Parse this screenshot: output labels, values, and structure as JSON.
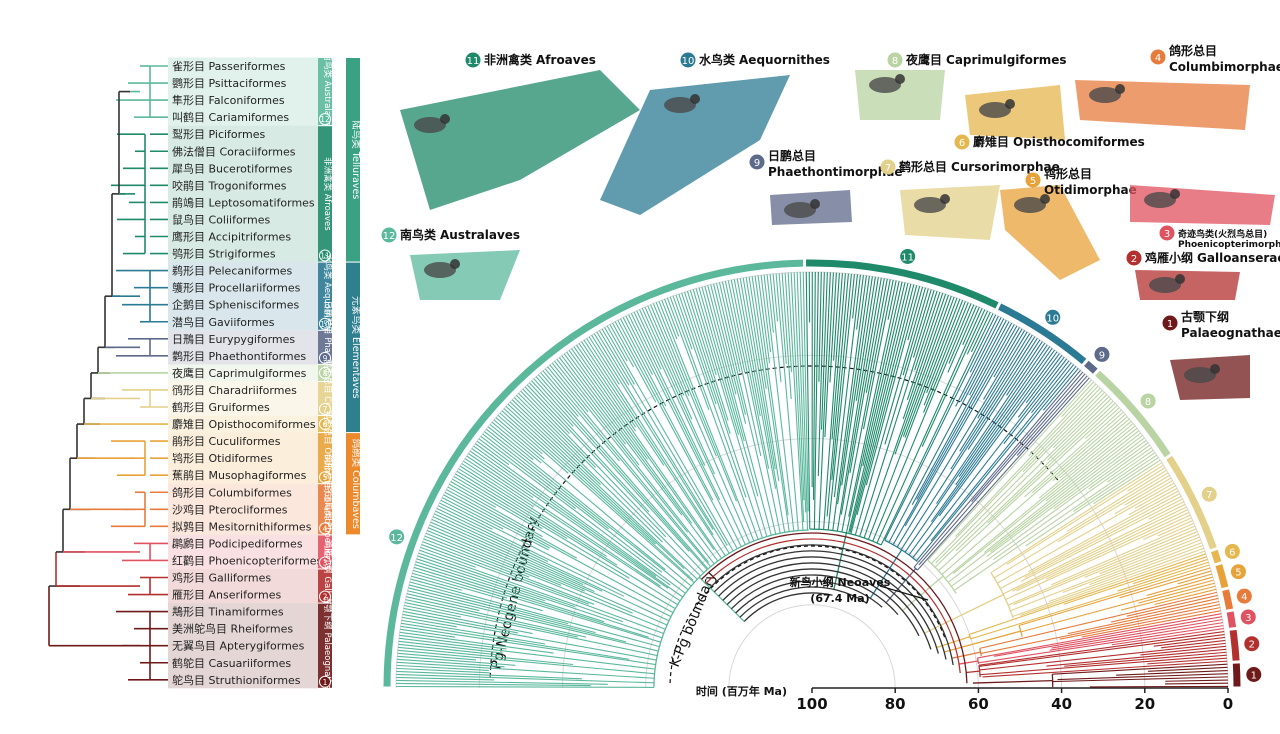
{
  "orders": [
    "雀形目 Passeriformes",
    "鹦形目 Psittaciformes",
    "隼形目 Falconiformes",
    "叫鹤目 Cariamiformes",
    "䴕形目 Piciformes",
    "佛法僧目 Coraciiformes",
    "犀鸟目 Bucerotiformes",
    "咬鹃目 Trogoniformes",
    "鹃鴗目 Leptosomatiformes",
    "鼠鸟目 Coliiformes",
    "鹰形目 Accipitriformes",
    "鸮形目 Strigiformes",
    "鹈形目 Pelecaniformes",
    "鹱形目 Procellariiformes",
    "企鹅目 Sphenisciformes",
    "潜鸟目 Gaviiformes",
    "日鳽目 Eurypygiformes",
    "鹲形目 Phaethontiformes",
    "夜鹰目 Caprimulgiformes",
    "鸻形目 Charadriiformes",
    "鹤形目 Gruiformes",
    "麝雉目 Opisthocomiformes",
    "鹃形目 Cuculiformes",
    "鸨形目 Otidiformes",
    "蕉鹃目 Musophagiformes",
    "鸽形目 Columbiformes",
    "沙鸡目 Pterocliformes",
    "拟鹑目 Mesitornithiformes",
    "䴙䴘目 Podicipediformes",
    "红鹳目 Phoenicopteriformes",
    "鸡形目 Galliformes",
    "雁形目 Anseriformes",
    "䳍形目 Tinamiformes",
    "美洲鸵鸟目 Rheiformes",
    "无翼鸟目 Apterygiformes",
    "鹤鸵目 Casuariiformes",
    "鸵鸟目 Struthioniformes"
  ],
  "superclades": [
    "陆鸟类 Telluraves",
    "元素鸟类 Elementaves",
    "鸽鹃类 Columbaves"
  ],
  "groups": [
    {
      "num": 12,
      "zh": "南鸟类",
      "en": "Australaves",
      "left_label": "南鸟类 Australaves",
      "color": "#5bb89b"
    },
    {
      "num": 11,
      "zh": "非洲禽类",
      "en": "Afroaves",
      "left_label": "非洲禽类 Afroaves",
      "color": "#1f8a6a"
    },
    {
      "num": 10,
      "zh": "水鸟类",
      "en": "Aequornithes",
      "left_label": "水鸟类 Aequornithes",
      "color": "#2b7a93"
    },
    {
      "num": 9,
      "zh": "日鹏总目",
      "en": "Phaethontimorphae",
      "left_label": "日鹏总目 Phaethontim.",
      "color": "#5d6a8a"
    },
    {
      "num": 8,
      "zh": "夜鹰目",
      "en": "Caprimulgiformes",
      "color": "#b9d3a3"
    },
    {
      "num": 7,
      "zh": "鹤形总目",
      "en": "Cursorimorphae",
      "left_label": "鹤形总目 Cursorim.",
      "color": "#e3d08a"
    },
    {
      "num": 6,
      "zh": "麝雉目",
      "en": "Opisthocomiformes",
      "color": "#e5b74e"
    },
    {
      "num": 5,
      "zh": "鸨形总目",
      "en": "Otidimorphae",
      "left_label": "鸨形总目 Otidimorphae",
      "color": "#e8a23a"
    },
    {
      "num": 4,
      "zh": "鸽形总目",
      "en": "Columbimorphae",
      "left_label": "鸽形总目 Columbimorphae",
      "color": "#e77b3c"
    },
    {
      "num": 3,
      "zh": "奇迹鸟类(火烈鸟总目)",
      "en": "Phoenicopterimorphae",
      "left_label": "奇迹鸟类 Phoenicopterimorphae",
      "color": "#e05260"
    },
    {
      "num": 2,
      "zh": "鸡雁小纲",
      "en": "Galloanserae",
      "left_label": "鸡雁小纲 Galloanserae",
      "color": "#b3302f"
    },
    {
      "num": 1,
      "zh": "古颚下纲",
      "en": "Palaeognathae",
      "left_label": "古颚下纲 Palaeognathae",
      "color": "#6f1a1a"
    }
  ],
  "time_axis": {
    "label": "时间 (百万年 Ma)",
    "ticks": [
      100,
      80,
      60,
      40,
      20,
      0
    ]
  },
  "boundaries": {
    "pg_neogene": "Pg-Neogene boundary",
    "k_pg": "K-Pg boundary"
  },
  "neoaves": {
    "label": "新鸟小纲 Neoaves",
    "age": "(67.4 Ma)"
  }
}
